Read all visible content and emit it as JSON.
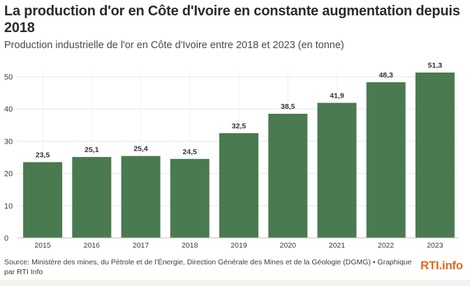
{
  "header": {
    "title": "La production d'or en Côte d'Ivoire en constante augmentation depuis 2018",
    "subtitle": "Production industrielle de l'or en Côte d'Ivoire entre 2018 et 2023 (en tonne)"
  },
  "footer": {
    "source": "Source: Ministère des mines, du Pétrole et de l'Énergie, Direction Générale des Mines et de la Géologie (DGMG) • Graphique par RTI Info",
    "logo_text": "RTI.info"
  },
  "colors": {
    "bar": "#4a7a4f",
    "grid": "#e6e6e6",
    "logo": "#e06a1b"
  },
  "chart_data": {
    "type": "bar",
    "categories": [
      "2015",
      "2016",
      "2017",
      "2018",
      "2019",
      "2020",
      "2021",
      "2022",
      "2023"
    ],
    "values": [
      23.5,
      25.1,
      25.4,
      24.5,
      32.5,
      38.5,
      41.9,
      48.3,
      51.3
    ],
    "value_labels": [
      "23,5",
      "25,1",
      "25,4",
      "24,5",
      "32,5",
      "38,5",
      "41,9",
      "48,3",
      "51,3"
    ],
    "y_ticks": [
      0,
      10,
      20,
      30,
      40,
      50
    ],
    "ylim": [
      0,
      55
    ],
    "grid": true
  }
}
